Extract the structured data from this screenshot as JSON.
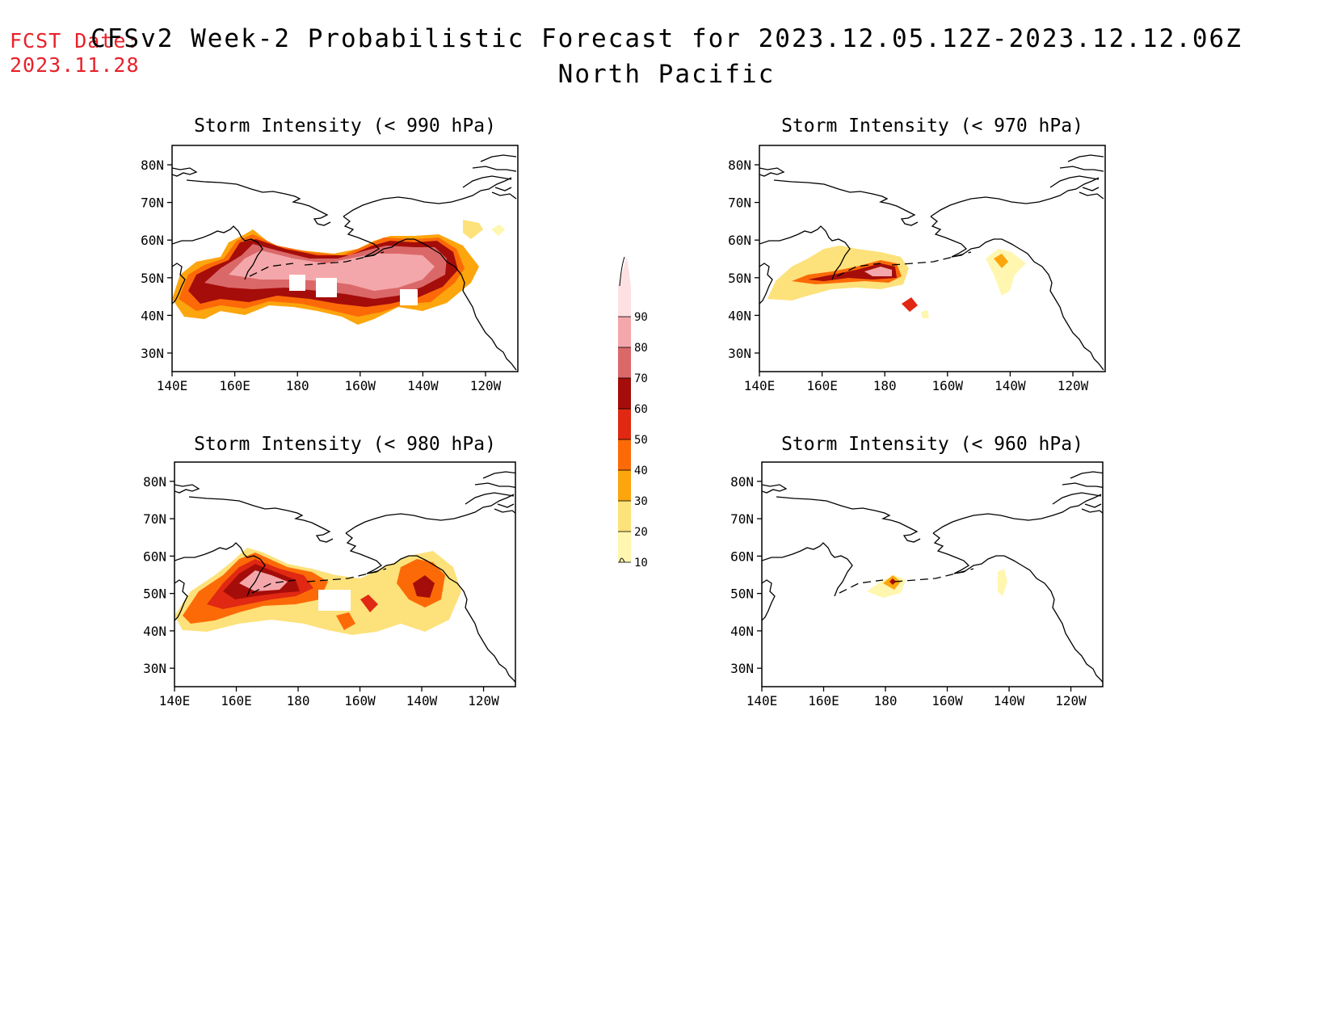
{
  "header": {
    "fcst_label": "FCST Date:",
    "fcst_date": "2023.11.28",
    "title": "CFSv2 Week-2 Probabilistic Forecast for 2023.12.05.12Z-2023.12.12.06Z",
    "subtitle": "North Pacific"
  },
  "axes": {
    "lat_labels": [
      "80N",
      "70N",
      "60N",
      "50N",
      "40N",
      "30N"
    ],
    "lon_labels": [
      "140E",
      "160E",
      "180",
      "160W",
      "140W",
      "120W"
    ]
  },
  "colorbar": {
    "levels": [
      "10",
      "20",
      "30",
      "40",
      "50",
      "60",
      "70",
      "80",
      "90"
    ],
    "colors": [
      "#fff6b0",
      "#fde17a",
      "#fca50d",
      "#fc6a08",
      "#e02812",
      "#a50d0a",
      "#db6869",
      "#f4a7aa",
      "#fde0e2"
    ]
  },
  "panels": [
    {
      "id": "p990",
      "title": "Storm Intensity (< 990 hPa)"
    },
    {
      "id": "p970",
      "title": "Storm Intensity (< 970 hPa)"
    },
    {
      "id": "p980",
      "title": "Storm Intensity (< 980 hPa)"
    },
    {
      "id": "p960",
      "title": "Storm Intensity (< 960 hPa)"
    }
  ]
}
